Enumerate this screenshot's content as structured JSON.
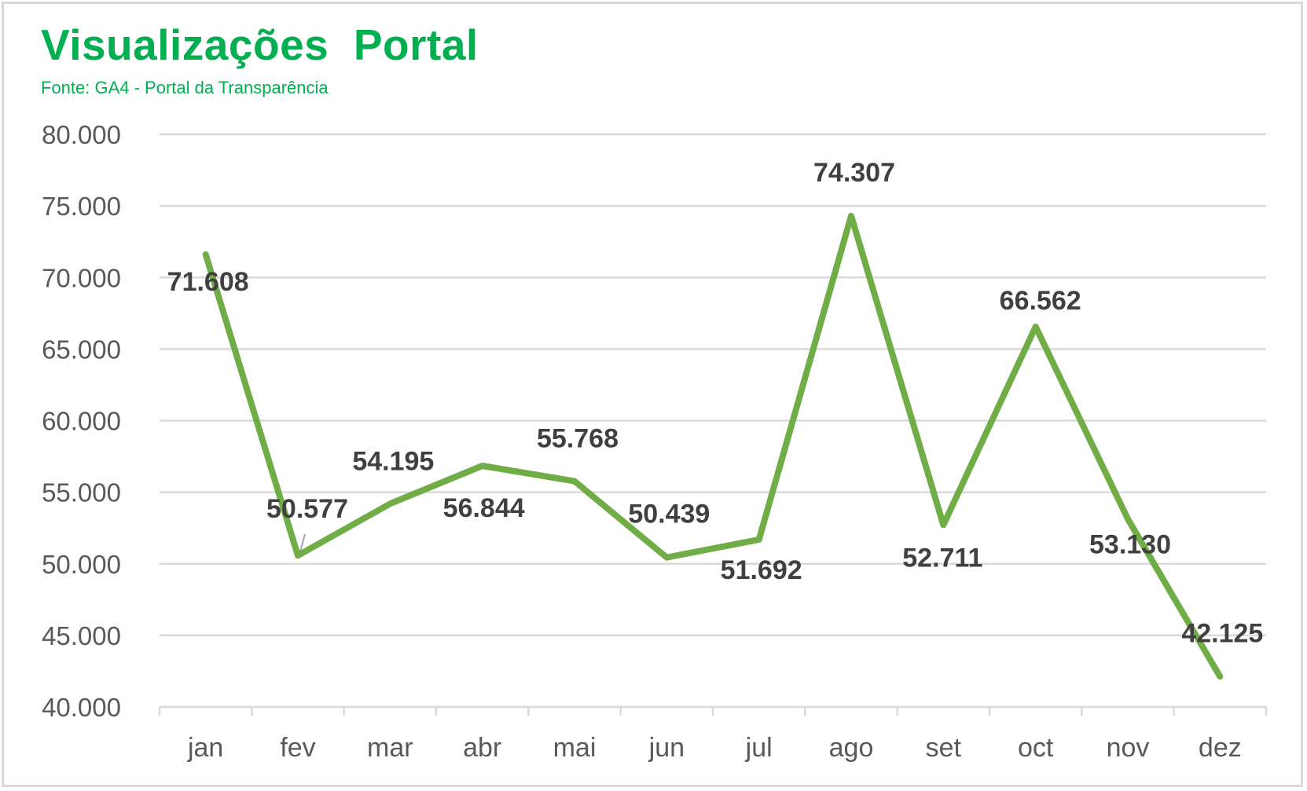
{
  "title": "Visualizações  Portal",
  "subtitle": "Fonte: GA4 - Portal da Transparência",
  "colors": {
    "title": "#00b050",
    "line": "#70ad47",
    "gridline": "#d9d9d9",
    "axis_text": "#595959",
    "data_label": "#404040",
    "border": "#d9d9d9"
  },
  "chart_data": {
    "type": "line",
    "title": "Visualizações  Portal",
    "subtitle": "Fonte: GA4 - Portal da Transparência",
    "xlabel": "",
    "ylabel": "",
    "categories": [
      "jan",
      "fev",
      "mar",
      "abr",
      "mai",
      "jun",
      "jul",
      "ago",
      "set",
      "oct",
      "nov",
      "dez"
    ],
    "values": [
      71608,
      50577,
      54195,
      56844,
      55768,
      50439,
      51692,
      74307,
      52711,
      66562,
      53130,
      42125
    ],
    "data_labels": [
      "71.608",
      "50.577",
      "54.195",
      "56.844",
      "55.768",
      "50.439",
      "51.692",
      "74.307",
      "52.711",
      "66.562",
      "53.130",
      "42.125"
    ],
    "ylim": [
      40000,
      80000
    ],
    "yticks": [
      40000,
      45000,
      50000,
      55000,
      60000,
      65000,
      70000,
      75000,
      80000
    ],
    "ytick_labels": [
      "40.000",
      "45.000",
      "50.000",
      "55.000",
      "60.000",
      "65.000",
      "70.000",
      "75.000",
      "80.000"
    ],
    "grid": true,
    "legend": null
  }
}
